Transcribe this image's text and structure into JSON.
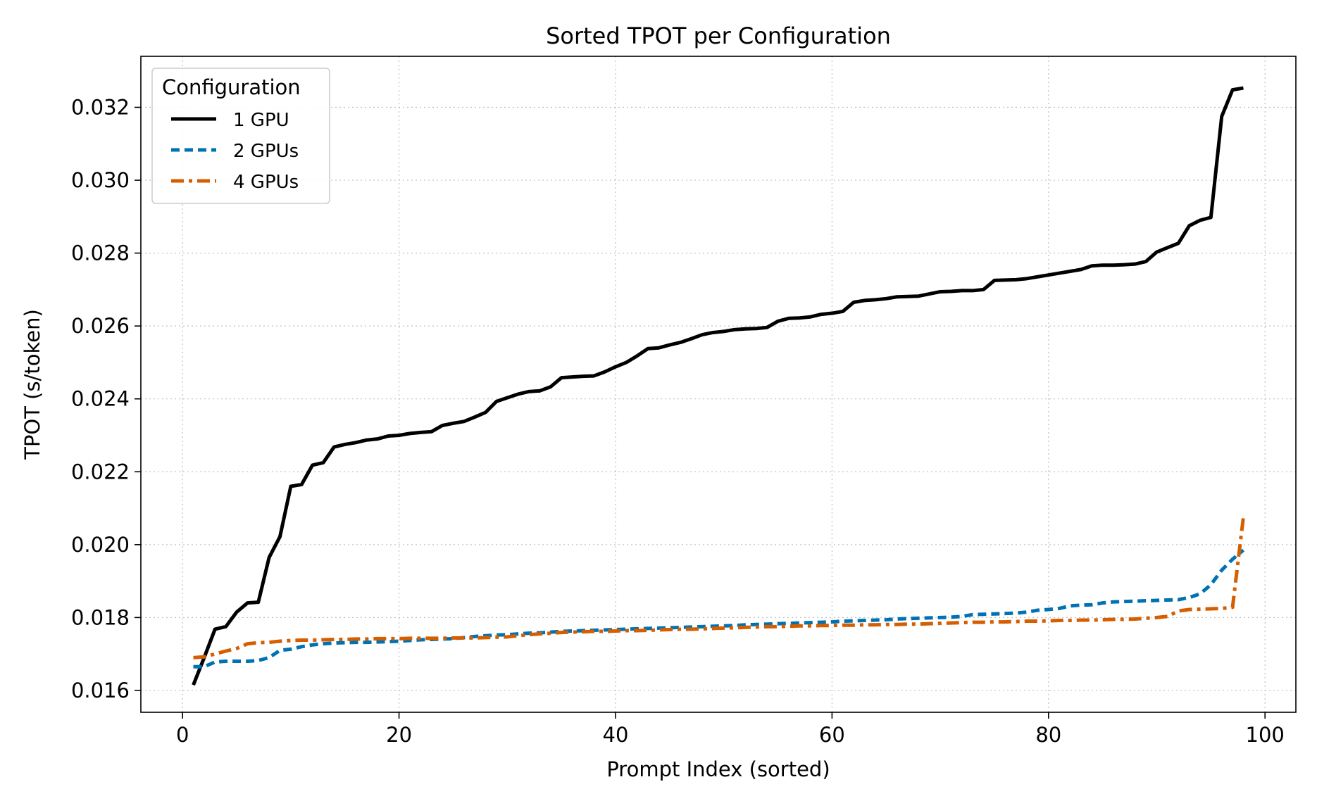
{
  "chart_data": {
    "type": "line",
    "title": "Sorted TPOT per Configuration",
    "xlabel": "Prompt Index (sorted)",
    "ylabel": "TPOT (s/token)",
    "xlim": [
      -3.85,
      102.85
    ],
    "ylim": [
      0.0154,
      0.0334
    ],
    "x_ticks": [
      0,
      20,
      40,
      60,
      80,
      100
    ],
    "x_tick_labels": [
      "0",
      "20",
      "40",
      "60",
      "80",
      "100"
    ],
    "y_ticks": [
      0.016,
      0.018,
      0.02,
      0.022,
      0.024,
      0.026,
      0.028,
      0.03,
      0.032
    ],
    "y_tick_labels": [
      "0.016",
      "0.018",
      "0.020",
      "0.022",
      "0.024",
      "0.026",
      "0.028",
      "0.030",
      "0.032"
    ],
    "grid": true,
    "legend": {
      "title": "Configuration",
      "position": "top-left"
    },
    "series": [
      {
        "name": "1 GPU",
        "color": "#000000",
        "style": "solid",
        "x_start": 1,
        "values": [
          0.01615,
          0.0169,
          0.01768,
          0.01775,
          0.01815,
          0.0184,
          0.01842,
          0.01965,
          0.02022,
          0.0216,
          0.02165,
          0.02218,
          0.02225,
          0.02268,
          0.02275,
          0.0228,
          0.02287,
          0.0229,
          0.02298,
          0.023,
          0.02305,
          0.02308,
          0.0231,
          0.02327,
          0.02333,
          0.02338,
          0.0235,
          0.02363,
          0.02393,
          0.02403,
          0.02413,
          0.0242,
          0.02422,
          0.02433,
          0.02458,
          0.0246,
          0.02462,
          0.02463,
          0.02474,
          0.02488,
          0.025,
          0.02518,
          0.02538,
          0.0254,
          0.02548,
          0.02555,
          0.02565,
          0.02576,
          0.02582,
          0.02585,
          0.0259,
          0.02592,
          0.02593,
          0.02596,
          0.02613,
          0.02621,
          0.02622,
          0.02625,
          0.02632,
          0.02635,
          0.0264,
          0.02665,
          0.0267,
          0.02672,
          0.02675,
          0.0268,
          0.02681,
          0.02682,
          0.02688,
          0.02694,
          0.02695,
          0.02697,
          0.02697,
          0.027,
          0.02725,
          0.02726,
          0.02727,
          0.0273,
          0.02735,
          0.0274,
          0.02745,
          0.0275,
          0.02755,
          0.02765,
          0.02767,
          0.02767,
          0.02768,
          0.0277,
          0.02777,
          0.02803,
          0.02815,
          0.02827,
          0.02875,
          0.0289,
          0.02898,
          0.03175,
          0.03248,
          0.03253
        ]
      },
      {
        "name": "2 GPUs",
        "color": "#0072B2",
        "style": "dashed",
        "x_start": 1,
        "values": [
          0.01665,
          0.01665,
          0.01678,
          0.0168,
          0.0168,
          0.0168,
          0.01682,
          0.0169,
          0.0171,
          0.01713,
          0.0172,
          0.01725,
          0.01728,
          0.0173,
          0.01731,
          0.01732,
          0.01732,
          0.01733,
          0.01734,
          0.01735,
          0.01737,
          0.01739,
          0.0174,
          0.01741,
          0.01742,
          0.01745,
          0.01748,
          0.0175,
          0.01752,
          0.01753,
          0.01755,
          0.01757,
          0.01758,
          0.0176,
          0.01762,
          0.01763,
          0.01764,
          0.01765,
          0.01766,
          0.01767,
          0.01768,
          0.01769,
          0.0177,
          0.01771,
          0.01772,
          0.01773,
          0.01774,
          0.01775,
          0.01776,
          0.01777,
          0.01778,
          0.0178,
          0.01781,
          0.01782,
          0.01783,
          0.01784,
          0.01785,
          0.01786,
          0.01787,
          0.01788,
          0.0179,
          0.01791,
          0.01792,
          0.01793,
          0.01794,
          0.01796,
          0.01797,
          0.01798,
          0.01799,
          0.018,
          0.01801,
          0.01803,
          0.01808,
          0.01809,
          0.0181,
          0.01811,
          0.01812,
          0.01815,
          0.0182,
          0.01822,
          0.01825,
          0.01832,
          0.01834,
          0.01835,
          0.0184,
          0.01843,
          0.01844,
          0.01845,
          0.01846,
          0.01847,
          0.01848,
          0.01849,
          0.01855,
          0.01865,
          0.0189,
          0.0193,
          0.0196,
          0.01985
        ]
      },
      {
        "name": "4 GPUs",
        "color": "#D55E00",
        "style": "dashdot",
        "x_start": 1,
        "values": [
          0.0169,
          0.01692,
          0.017,
          0.01708,
          0.01715,
          0.01728,
          0.01731,
          0.01732,
          0.01735,
          0.01737,
          0.01738,
          0.01738,
          0.01739,
          0.0174,
          0.0174,
          0.01741,
          0.01741,
          0.01742,
          0.01742,
          0.01742,
          0.01743,
          0.01743,
          0.01743,
          0.01743,
          0.01744,
          0.01744,
          0.01744,
          0.01745,
          0.01746,
          0.01747,
          0.0175,
          0.01753,
          0.01755,
          0.01757,
          0.01759,
          0.0176,
          0.01761,
          0.01762,
          0.01762,
          0.01763,
          0.01764,
          0.01764,
          0.01765,
          0.01766,
          0.01767,
          0.01768,
          0.01768,
          0.01769,
          0.0177,
          0.01771,
          0.01772,
          0.01773,
          0.01774,
          0.01775,
          0.01775,
          0.01776,
          0.01777,
          0.01777,
          0.01778,
          0.01778,
          0.01779,
          0.01779,
          0.0178,
          0.0178,
          0.01781,
          0.01781,
          0.01782,
          0.01782,
          0.01783,
          0.01784,
          0.01785,
          0.01786,
          0.01787,
          0.01787,
          0.01788,
          0.01788,
          0.01789,
          0.0179,
          0.0179,
          0.01791,
          0.01792,
          0.01792,
          0.01793,
          0.01793,
          0.01794,
          0.01795,
          0.01795,
          0.01796,
          0.01798,
          0.018,
          0.01803,
          0.01818,
          0.01822,
          0.01823,
          0.01824,
          0.01825,
          0.01828,
          0.02075
        ]
      }
    ]
  }
}
